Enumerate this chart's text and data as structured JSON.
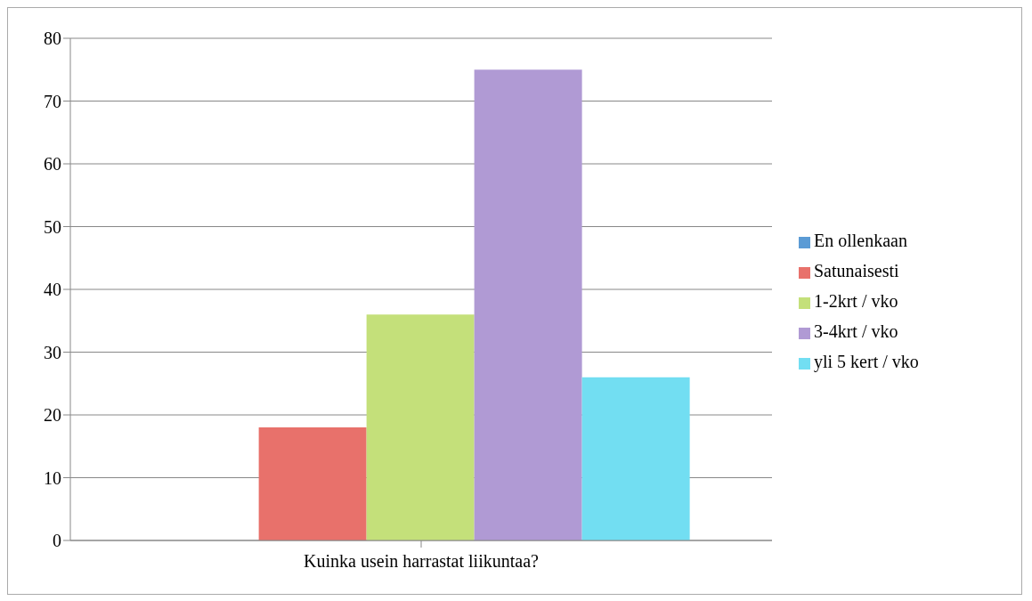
{
  "chart_data": {
    "type": "bar",
    "categories": [
      "Kuinka usein harrastat liikuntaa?"
    ],
    "series": [
      {
        "name": "En ollenkaan",
        "color": "#5b9bd5",
        "values": [
          0
        ]
      },
      {
        "name": "Satunaisesti",
        "color": "#e8716b",
        "values": [
          18
        ]
      },
      {
        "name": "1-2krt / vko",
        "color": "#c4e07a",
        "values": [
          36
        ]
      },
      {
        "name": "3-4krt / vko",
        "color": "#b09ad4",
        "values": [
          75
        ]
      },
      {
        "name": "yli 5 kert / vko",
        "color": "#72def2",
        "values": [
          26
        ]
      }
    ],
    "ylim": [
      0,
      80
    ],
    "yticks": [
      0,
      10,
      20,
      30,
      40,
      50,
      60,
      70,
      80
    ],
    "grid": "y",
    "legend": "right"
  }
}
